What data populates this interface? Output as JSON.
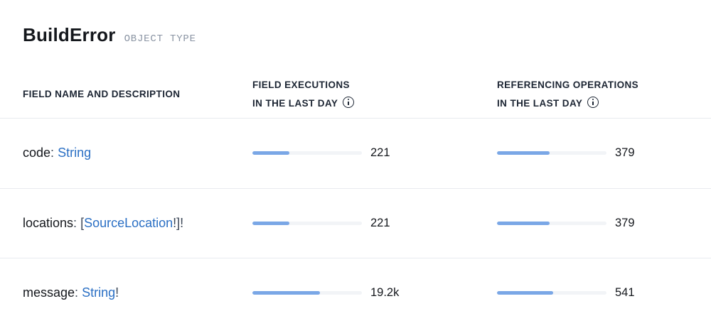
{
  "header": {
    "title": "BuildError",
    "subtitle": "OBJECT TYPE"
  },
  "columns": {
    "field": "FIELD NAME AND DESCRIPTION",
    "executions": {
      "line1": "FIELD EXECUTIONS",
      "line2": "IN THE LAST DAY"
    },
    "operations": {
      "line1": "REFERENCING OPERATIONS",
      "line2": "IN THE LAST DAY"
    }
  },
  "rows": [
    {
      "name": "code",
      "sep": ": ",
      "pre": "",
      "type": "String",
      "post": "",
      "executions": {
        "value": "221",
        "fraction": 0.34
      },
      "operations": {
        "value": "379",
        "fraction": 0.48
      }
    },
    {
      "name": "locations",
      "sep": ": ",
      "pre": "[",
      "type": "SourceLocation",
      "post": "!]!",
      "executions": {
        "value": "221",
        "fraction": 0.34
      },
      "operations": {
        "value": "379",
        "fraction": 0.48
      }
    },
    {
      "name": "message",
      "sep": ": ",
      "pre": "",
      "type": "String",
      "post": "!",
      "executions": {
        "value": "19.2k",
        "fraction": 0.62
      },
      "operations": {
        "value": "541",
        "fraction": 0.51
      }
    }
  ],
  "colors": {
    "link": "#2a6fc4",
    "bar_fill": "#7aa7e6",
    "bar_track": "#f2f4f7",
    "divider": "#e8ebef"
  }
}
